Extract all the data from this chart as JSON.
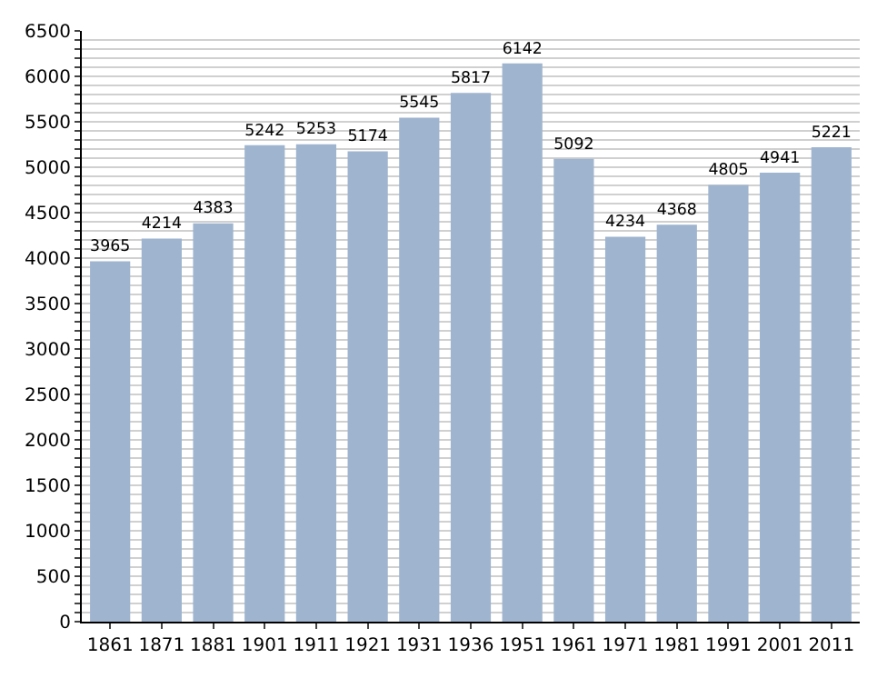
{
  "chart_data": {
    "type": "bar",
    "categories": [
      "1861",
      "1871",
      "1881",
      "1901",
      "1911",
      "1921",
      "1931",
      "1936",
      "1951",
      "1961",
      "1971",
      "1981",
      "1991",
      "2001",
      "2011"
    ],
    "values": [
      3965,
      4214,
      4383,
      5242,
      5253,
      5174,
      5545,
      5817,
      6142,
      5092,
      4234,
      4368,
      4805,
      4941,
      5221
    ],
    "color": "#9fb4cf",
    "data_labels": true,
    "ylim": [
      0,
      6500
    ],
    "yticks": [
      0,
      {
        "value": 100,
        "label": null
      },
      {
        "value": 200,
        "label": null
      },
      {
        "value": 300,
        "label": null
      },
      {
        "value": 400,
        "label": null
      },
      500,
      {
        "value": 600,
        "label": null
      },
      {
        "value": 700,
        "label": null
      },
      {
        "value": 800,
        "label": null
      },
      {
        "value": 900,
        "label": null
      },
      1000,
      {
        "value": 1100,
        "label": null
      },
      {
        "value": 1200,
        "label": null
      },
      {
        "value": 1300,
        "label": null
      },
      {
        "value": 1400,
        "label": null
      },
      1500,
      {
        "value": 1600,
        "label": null
      },
      {
        "value": 1700,
        "label": null
      },
      {
        "value": 1800,
        "label": null
      },
      {
        "value": 1900,
        "label": null
      },
      2000,
      {
        "value": 2100,
        "label": null
      },
      {
        "value": 2200,
        "label": null
      },
      {
        "value": 2300,
        "label": null
      },
      {
        "value": 2400,
        "label": null
      },
      2500,
      {
        "value": 2600,
        "label": null
      },
      {
        "value": 2700,
        "label": null
      },
      {
        "value": 2800,
        "label": null
      },
      {
        "value": 2900,
        "label": null
      },
      3000,
      {
        "value": 3100,
        "label": null
      },
      {
        "value": 3200,
        "label": null
      },
      {
        "value": 3300,
        "label": null
      },
      {
        "value": 3400,
        "label": null
      },
      3500,
      {
        "value": 3600,
        "label": null
      },
      {
        "value": 3700,
        "label": null
      },
      {
        "value": 3800,
        "label": null
      },
      {
        "value": 3900,
        "label": null
      },
      4000,
      {
        "value": 4100,
        "label": null
      },
      {
        "value": 4200,
        "label": null
      },
      {
        "value": 4300,
        "label": null
      },
      {
        "value": 4400,
        "label": null
      },
      4500,
      {
        "value": 4600,
        "label": null
      },
      {
        "value": 4700,
        "label": null
      },
      {
        "value": 4800,
        "label": null
      },
      {
        "value": 4900,
        "label": null
      },
      5000,
      {
        "value": 5100,
        "label": null
      },
      {
        "value": 5200,
        "label": null
      },
      {
        "value": 5300,
        "label": null
      },
      {
        "value": 5400,
        "label": null
      },
      5500,
      {
        "value": 5600,
        "label": null
      },
      {
        "value": 5700,
        "label": null
      },
      {
        "value": 5800,
        "label": null
      },
      {
        "value": 5900,
        "label": null
      },
      6000,
      {
        "value": 6100,
        "label": null
      },
      {
        "value": 6200,
        "label": null
      },
      {
        "value": 6300,
        "label": null
      },
      {
        "value": 6400,
        "label": null
      },
      6500
    ],
    "grid": "y"
  }
}
